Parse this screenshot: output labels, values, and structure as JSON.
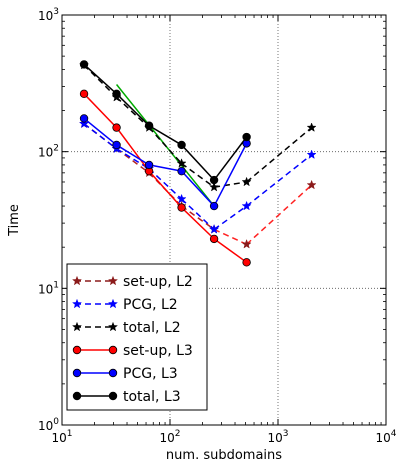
{
  "chart_data": {
    "type": "line",
    "xscale": "log",
    "yscale": "log",
    "xlim": [
      10,
      10000
    ],
    "ylim": [
      1,
      1000
    ],
    "xlabel": "num. subdomains",
    "ylabel": "Time",
    "x_ticks": [
      {
        "value": 10,
        "base": "10",
        "exp": "1"
      },
      {
        "value": 100,
        "base": "10",
        "exp": "2"
      },
      {
        "value": 1000,
        "base": "10",
        "exp": "3"
      },
      {
        "value": 10000,
        "base": "10",
        "exp": "4"
      }
    ],
    "y_ticks": [
      {
        "value": 1,
        "base": "10",
        "exp": "0"
      },
      {
        "value": 10,
        "base": "10",
        "exp": "1"
      },
      {
        "value": 100,
        "base": "10",
        "exp": "2"
      },
      {
        "value": 1000,
        "base": "10",
        "exp": "3"
      }
    ],
    "grid": true,
    "legend_position": "bottom-left",
    "series": [
      {
        "name": "set-up, L2",
        "color": "#8b1a1a",
        "marker": "star",
        "dash": "dashed",
        "segment_colors": [
          "#b22222",
          "#b22222",
          "#b22222",
          "#b22222",
          "#ff2222",
          "#ff2222",
          "#ff2222"
        ],
        "x": [
          16,
          32,
          64,
          128,
          256,
          512,
          2048
        ],
        "y": [
          160,
          105,
          70,
          40,
          27,
          21,
          57
        ]
      },
      {
        "name": "PCG, L2",
        "color": "#0000ff",
        "marker": "star",
        "dash": "dashed",
        "x": [
          16,
          32,
          64,
          128,
          256,
          512,
          2048
        ],
        "y": [
          160,
          105,
          75,
          45,
          27,
          40,
          95
        ]
      },
      {
        "name": "total, L2",
        "color": "#000000",
        "marker": "star",
        "dash": "dashed",
        "x": [
          16,
          32,
          64,
          128,
          256,
          512,
          2048
        ],
        "y": [
          430,
          250,
          150,
          82,
          55,
          60,
          150
        ]
      },
      {
        "name": "set-up, L3",
        "color": "#ff0000",
        "marker": "circle",
        "dash": "solid",
        "x": [
          16,
          32,
          64,
          128,
          256,
          512
        ],
        "y": [
          265,
          150,
          72,
          39,
          23,
          15.5
        ]
      },
      {
        "name": "PCG, L3",
        "color": "#0000ff",
        "marker": "circle",
        "dash": "solid",
        "x": [
          16,
          32,
          64,
          128,
          256,
          512
        ],
        "y": [
          175,
          112,
          80,
          72,
          40,
          115
        ]
      },
      {
        "name": "total, L3",
        "color": "#000000",
        "marker": "circle",
        "dash": "solid",
        "x": [
          16,
          32,
          64,
          128,
          256,
          512
        ],
        "y": [
          435,
          265,
          155,
          112,
          62,
          128
        ]
      }
    ],
    "reference_line": {
      "color": "#00aa00",
      "x": [
        32,
        256
      ],
      "y": [
        310,
        40
      ]
    }
  }
}
